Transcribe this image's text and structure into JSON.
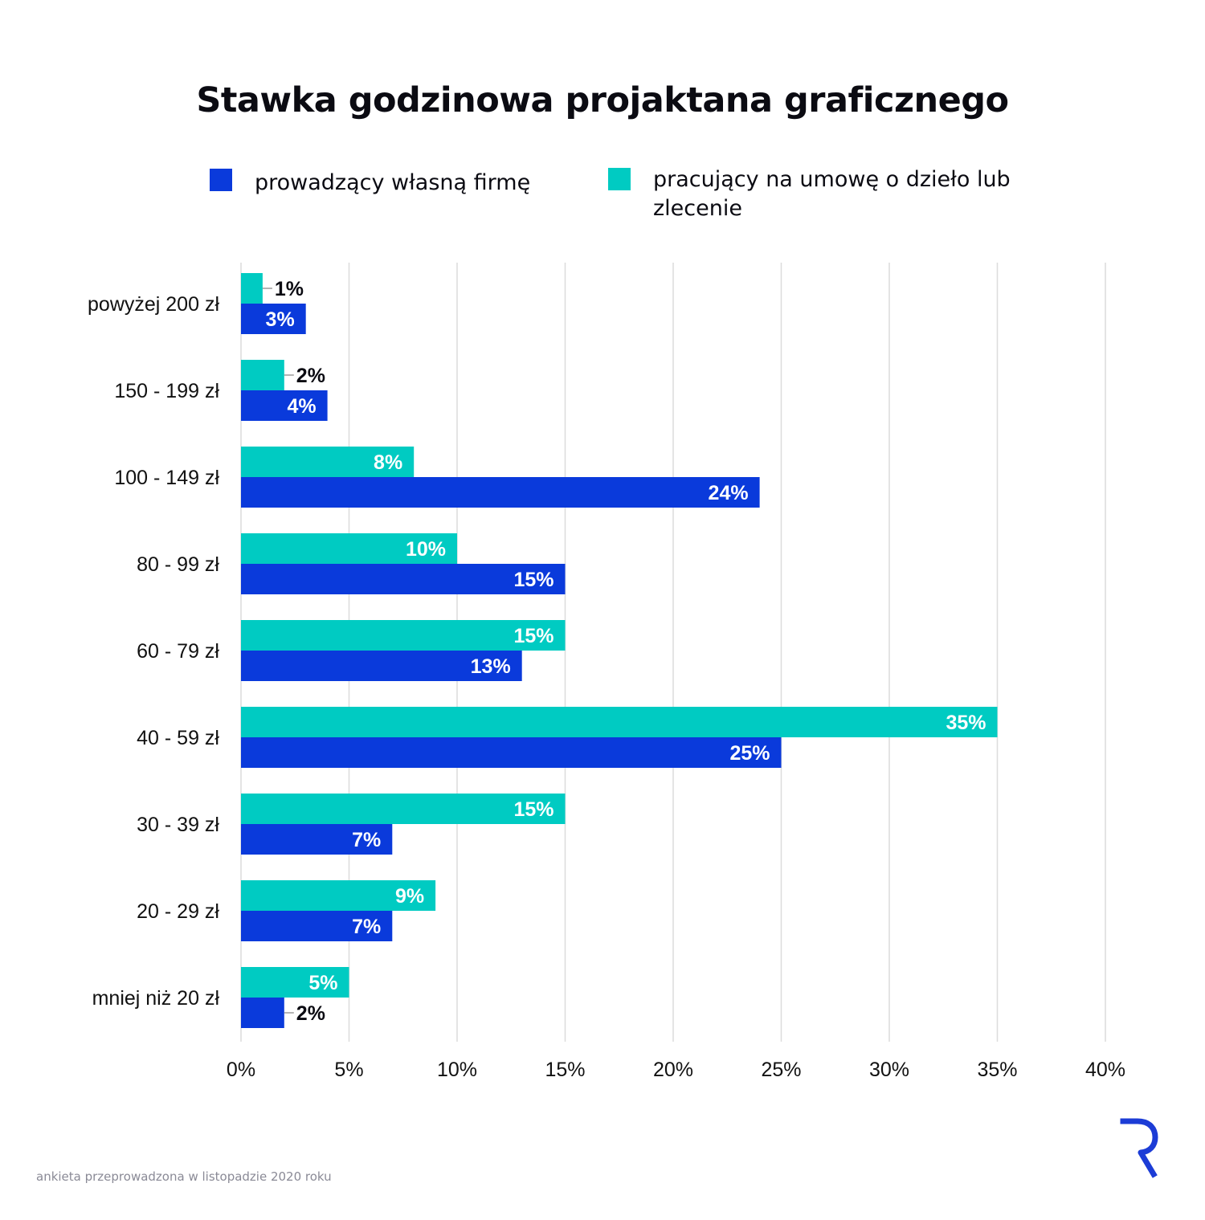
{
  "title": "Stawka godzinowa projaktana graficznego",
  "footnote": "ankieta przeprowadzona w listopadzie 2020 roku",
  "logo_icon": "r-logo-icon",
  "colors": {
    "firm": "#0a3adb",
    "contract": "#00cbc2",
    "grid": "#dcdcdc",
    "logo": "#1c3cd6"
  },
  "chart_data": {
    "type": "bar",
    "orientation": "horizontal",
    "title": "Stawka godzinowa projaktana graficznego",
    "categories": [
      "powyżej 200 zł",
      "150 - 199 zł",
      "100 - 149 zł",
      "80 - 99 zł",
      "60 - 79 zł",
      "40 - 59 zł",
      "30 - 39 zł",
      "20 - 29 zł",
      "mniej niż 20 zł"
    ],
    "series": [
      {
        "name": "pracujący na umowę o dzieło lub zlecenie",
        "color": "#00cbc2",
        "values": [
          1,
          2,
          8,
          10,
          15,
          35,
          15,
          9,
          5
        ]
      },
      {
        "name": "prowadzący własną firmę",
        "color": "#0a3adb",
        "values": [
          3,
          4,
          24,
          15,
          13,
          25,
          7,
          7,
          2
        ]
      }
    ],
    "xlim": [
      0,
      40
    ],
    "xticks": [
      "0%",
      "5%",
      "10%",
      "15%",
      "20%",
      "25%",
      "30%",
      "35%",
      "40%"
    ],
    "grid": true,
    "legend": "top"
  }
}
